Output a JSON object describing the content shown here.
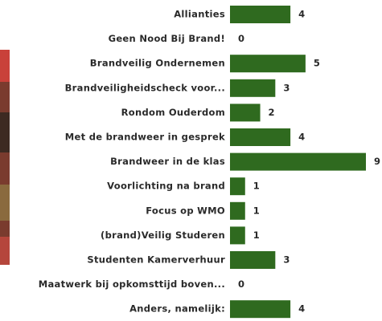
{
  "chart_data": {
    "type": "bar",
    "orientation": "horizontal",
    "color": "#2f6a1f",
    "categories": [
      "Allianties",
      "Geen Nood Bij Brand!",
      "Brandveilig Ondernemen",
      "Brandveiligheidscheck voor...",
      "Rondom Ouderdom",
      "Met de brandweer in gesprek",
      "Brandweer in de klas",
      "Voorlichting na brand",
      "Focus op WMO",
      "(brand)Veilig Studeren",
      "Studenten Kamerverhuur",
      "Maatwerk bij opkomsttijd boven...",
      "Anders, namelijk:"
    ],
    "values": [
      4,
      0,
      5,
      3,
      2,
      4,
      9,
      1,
      1,
      1,
      3,
      0,
      4
    ]
  }
}
